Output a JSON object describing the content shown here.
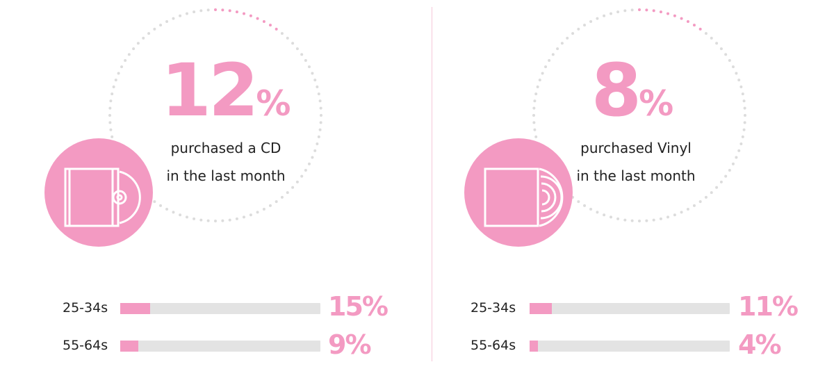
{
  "colors": {
    "accent": "#f39ac2",
    "track": "#e3e3e3",
    "dots": "#dcdcdc",
    "text": "#222222"
  },
  "chart_data": [
    {
      "type": "bar",
      "icon": "cd-case-icon",
      "headline": {
        "value": "12",
        "unit": "%"
      },
      "caption": [
        "purchased a CD",
        "in the last month"
      ],
      "categories": [
        "25-34s",
        "55-64s"
      ],
      "values": [
        15,
        9
      ],
      "value_labels": [
        "15%",
        "9%"
      ],
      "ylim": [
        0,
        100
      ]
    },
    {
      "type": "bar",
      "icon": "vinyl-record-icon",
      "headline": {
        "value": "8",
        "unit": "%"
      },
      "caption": [
        "purchased Vinyl",
        "in the last month"
      ],
      "categories": [
        "25-34s",
        "55-64s"
      ],
      "values": [
        11,
        4
      ],
      "value_labels": [
        "11%",
        "4%"
      ],
      "ylim": [
        0,
        100
      ]
    }
  ]
}
